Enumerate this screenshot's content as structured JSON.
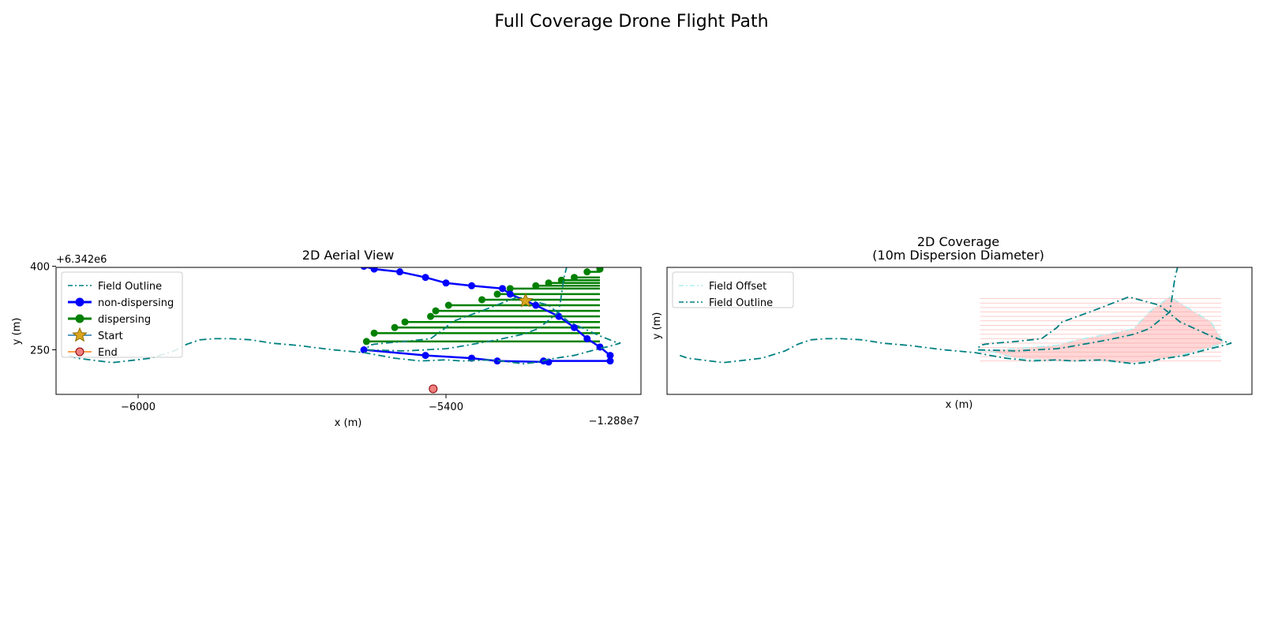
{
  "figure": {
    "title": "Full Coverage Drone Flight Path"
  },
  "chart_data": [
    {
      "type": "line",
      "title": "2D Aerial View",
      "xlabel": "x (m)",
      "ylabel": "y (m)",
      "x_offset_label": "−1.288e7",
      "y_offset_label": "+6.342e6",
      "xlim": [
        -6160,
        -5020
      ],
      "ylim": [
        170,
        398
      ],
      "x_ticks": [
        -6000,
        -5400
      ],
      "x_tick_labels": [
        "−6000",
        "−5400"
      ],
      "y_ticks": [
        250,
        400
      ],
      "y_tick_labels": [
        "250",
        "400"
      ],
      "grid": false,
      "legend_position": "upper left",
      "legend": [
        "Field Outline",
        "non-dispersing",
        "dispersing",
        "Start",
        "End"
      ],
      "series": [
        {
          "name": "Field Outline",
          "style": "dashdot",
          "color": "#008080",
          "x": [
            -6135,
            -6120,
            -6050,
            -5975,
            -5930,
            -5905,
            -5880,
            -5850,
            -5820,
            -5780,
            -5740,
            -5690,
            -5620,
            -5560,
            -5500,
            -5470,
            -5450,
            -5400,
            -5370,
            -5310,
            -5250,
            -5220,
            -5200,
            -5150,
            -5110,
            -5075,
            -5060,
            -5070,
            -5100,
            -5160,
            -5200,
            -5260,
            -5330,
            -5360,
            -5390,
            -5400,
            -5430,
            -5480,
            -5520,
            -5540,
            -5550,
            -5555,
            -5480,
            -5400,
            -5360,
            -5300,
            -5250,
            -5220,
            -5180,
            -5170,
            -5165
          ],
          "y": [
            240,
            235,
            227,
            235,
            248,
            260,
            268,
            270,
            270,
            268,
            262,
            258,
            250,
            245,
            235,
            232,
            230,
            232,
            230,
            232,
            225,
            228,
            233,
            240,
            250,
            258,
            262,
            264,
            275,
            300,
            330,
            345,
            320,
            310,
            300,
            290,
            270,
            265,
            262,
            260,
            258,
            250,
            248,
            252,
            258,
            268,
            278,
            288,
            318,
            380,
            398
          ]
        },
        {
          "name": "non-dispersing",
          "color": "#0000ff",
          "x": [
            -5560,
            -5440,
            -5350,
            -5300,
            -5200,
            -5210,
            -5080,
            -5080,
            -5100,
            -5125,
            -5150,
            -5180,
            -5225,
            -5275,
            -5290,
            -5350,
            -5400,
            -5440,
            -5490,
            -5540,
            -5560
          ],
          "y": [
            250,
            240,
            235,
            230,
            228,
            230,
            230,
            240,
            255,
            270,
            290,
            310,
            330,
            350,
            360,
            365,
            370,
            380,
            390,
            395,
            400
          ]
        },
        {
          "name": "dispersing",
          "color": "#008000",
          "x": [
            -5555,
            -5540,
            -5500,
            -5480,
            -5430,
            -5420,
            -5395,
            -5330,
            -5300,
            -5275,
            -5225,
            -5200,
            -5175,
            -5150,
            -5125,
            -5100
          ],
          "y": [
            265,
            280,
            290,
            300,
            310,
            320,
            330,
            340,
            350,
            360,
            365,
            370,
            375,
            380,
            390,
            395
          ]
        },
        {
          "name": "Start",
          "marker": "star",
          "color": "#daa520",
          "x": [
            -5245
          ],
          "y": [
            338
          ]
        },
        {
          "name": "End",
          "marker": "circle",
          "color": "#f08080",
          "x": [
            -5425
          ],
          "y": [
            180
          ]
        }
      ]
    },
    {
      "type": "area",
      "title": "2D Coverage\n(10m Dispersion Diameter)",
      "title_lines": [
        "2D Coverage",
        "(10m Dispersion Diameter)"
      ],
      "xlabel": "x (m)",
      "ylabel": "y (m)",
      "grid": false,
      "legend_position": "upper left",
      "legend": [
        "Field Offset",
        "Field Outline"
      ],
      "series": [
        {
          "name": "Field Offset",
          "style": "dashdot",
          "color": "#afeeee"
        },
        {
          "name": "Field Outline",
          "style": "dashdot",
          "color": "#008080"
        }
      ],
      "coverage_fill_color": "#ffb6b6"
    }
  ]
}
